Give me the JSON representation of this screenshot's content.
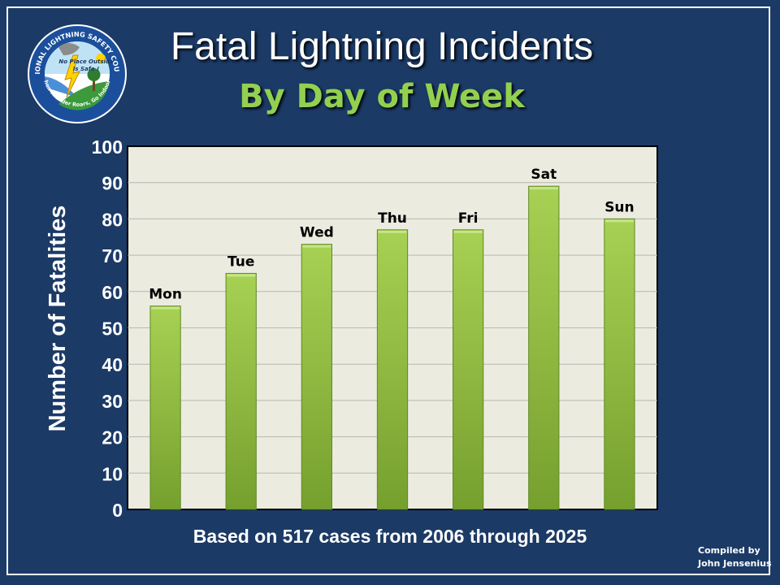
{
  "title": "Fatal Lightning Incidents",
  "subtitle": "By Day of Week",
  "footnote": "Based on 517 cases from 2006 through 2025",
  "credit": {
    "line1": "Compiled by",
    "line2": "John Jensenius"
  },
  "logo": {
    "ring_text": "NATIONAL LIGHTNING SAFETY COUNCIL",
    "bottom_text": "When Thunder Roars, Go Indoors!",
    "inner_line1": "No Place Outside",
    "inner_line2": "Is Safe !"
  },
  "colors": {
    "background": "#1b3a66",
    "plot_background": "#ecebe0",
    "bar_light": "#a7d153",
    "bar_dark": "#76a02e",
    "subtitle": "#92d050"
  },
  "chart_data": {
    "type": "bar",
    "categories": [
      "Mon",
      "Tue",
      "Wed",
      "Thu",
      "Fri",
      "Sat",
      "Sun"
    ],
    "values": [
      56,
      65,
      73,
      77,
      77,
      89,
      80
    ],
    "ylabel": "Number of Fatalities",
    "xlabel": "",
    "ylim": [
      0,
      100
    ],
    "yticks": [
      0,
      10,
      20,
      30,
      40,
      50,
      60,
      70,
      80,
      90,
      100
    ],
    "grid": true
  }
}
